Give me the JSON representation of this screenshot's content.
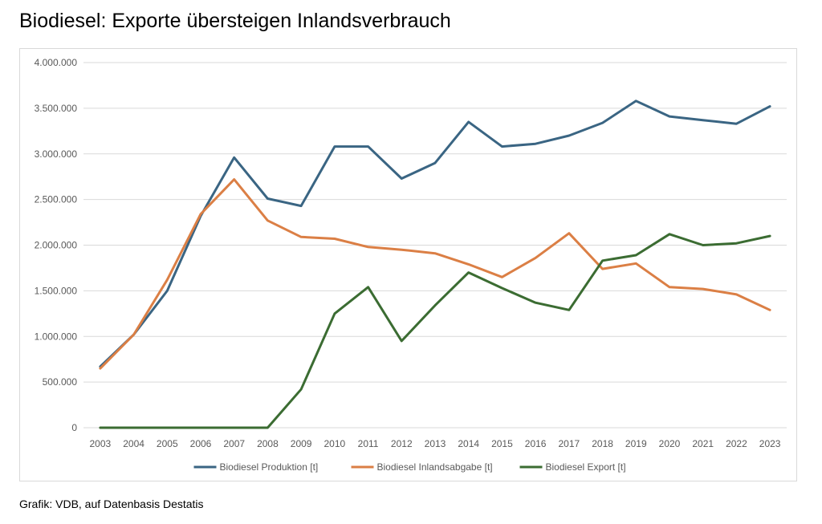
{
  "title": "Biodiesel: Exporte übersteigen Inlandsverbrauch",
  "caption": "Grafik: VDB, auf Datenbasis Destatis",
  "chart_data": {
    "type": "line",
    "title": "Biodiesel: Exporte übersteigen Inlandsverbrauch",
    "xlabel": "",
    "ylabel": "",
    "x": [
      "2003",
      "2004",
      "2005",
      "2006",
      "2007",
      "2008",
      "2009",
      "2010",
      "2011",
      "2012",
      "2013",
      "2014",
      "2015",
      "2016",
      "2017",
      "2018",
      "2019",
      "2020",
      "2021",
      "2022",
      "2023"
    ],
    "ylim": [
      0,
      4000000
    ],
    "yticks": [
      0,
      500000,
      1000000,
      1500000,
      2000000,
      2500000,
      3000000,
      3500000,
      4000000
    ],
    "ytick_labels": [
      "0",
      "500.000",
      "1.000.000",
      "1.500.000",
      "2.000.000",
      "2.500.000",
      "3.000.000",
      "3.500.000",
      "4.000.000"
    ],
    "grid": "horizontal",
    "legend": "bottom",
    "series": [
      {
        "name": "Biodiesel Produktion [t]",
        "color": "#3a6583",
        "values": [
          670000,
          1020000,
          1500000,
          2320000,
          2960000,
          2510000,
          2430000,
          3080000,
          3080000,
          2730000,
          2900000,
          3350000,
          3080000,
          3110000,
          3200000,
          3340000,
          3580000,
          3410000,
          3370000,
          3330000,
          3520000
        ]
      },
      {
        "name": "Biodiesel Inlandsabgabe [t]",
        "color": "#db7f45",
        "values": [
          650000,
          1020000,
          1620000,
          2340000,
          2720000,
          2270000,
          2090000,
          2070000,
          1980000,
          1950000,
          1910000,
          1790000,
          1650000,
          1860000,
          2130000,
          1740000,
          1800000,
          1540000,
          1520000,
          1460000,
          1290000
        ]
      },
      {
        "name": "Biodiesel Export [t]",
        "color": "#3b6c32",
        "values": [
          0,
          0,
          0,
          0,
          0,
          0,
          420000,
          1250000,
          1540000,
          950000,
          1340000,
          1700000,
          1530000,
          1370000,
          1290000,
          1830000,
          1890000,
          2120000,
          2000000,
          2020000,
          2100000
        ]
      }
    ]
  }
}
